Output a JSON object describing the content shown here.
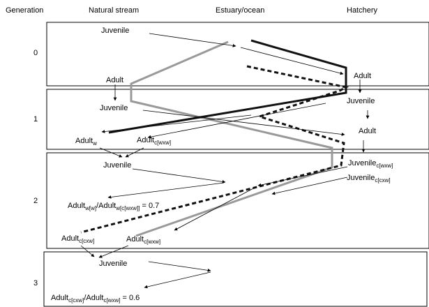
{
  "columns": {
    "generation": "Generation",
    "natural": "Natural stream",
    "estuary": "Estuary/ocean",
    "hatchery": "Hatchery"
  },
  "generations": [
    "0",
    "1",
    "2",
    "3"
  ],
  "labels": {
    "g0_juvenile": "Juvenile",
    "g0_adult": "Adult",
    "g0_hatch_adult": "Adult",
    "g1_juvenile": "Juvenile",
    "g1_hatch_juvenile": "Juvenile",
    "g1_hatch_adult": "Adult",
    "g1_adult_w": {
      "base": "Adult",
      "sub": "w"
    },
    "g1_adult_cwxw": {
      "base": "Adult",
      "sub": "c[wxw]"
    },
    "g2_juvenile": "Juvenile",
    "g2_hatch_juv_wxw": {
      "base": "Juvenile",
      "sub": "c[wxw]"
    },
    "g2_hatch_juv_cxw": {
      "base": "Juvenile",
      "sub": "c[cxw]"
    },
    "g2_ratio": {
      "a": "Adult",
      "a_sub": "w[w]",
      "sep": "/Adult",
      "b_sub": "w[c[wxw]]",
      "val": " = 0.7"
    },
    "g2_adult_cxw": {
      "base": "Adult",
      "sub": "c[cxw]"
    },
    "g2_adult_wxw": {
      "base": "Adult",
      "sub": "c[wxw]"
    },
    "g3_juvenile": "Juvenile",
    "g3_ratio": {
      "a": "Adult",
      "a_sub": "c[cxw]",
      "sep": "/Adult",
      "b_sub": "c[wxw]",
      "val": " = 0.6"
    }
  }
}
